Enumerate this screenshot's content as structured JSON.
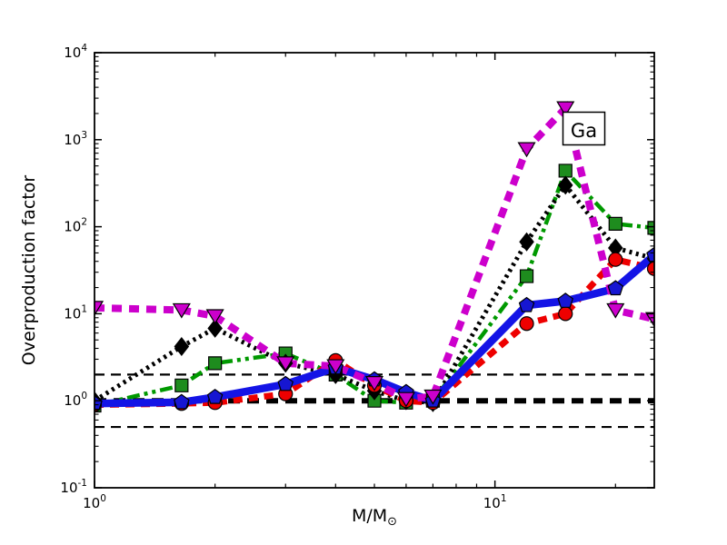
{
  "chart_data": {
    "type": "line",
    "title": "",
    "annotation": {
      "text": "Ga"
    },
    "xlabel_main": "M/M",
    "xlabel_subscript": "⊙",
    "ylabel": "Overproduction factor",
    "x_axis": {
      "scale": "log",
      "min": 1,
      "max": 25,
      "tick_base": "10",
      "tick_exponents": [
        0,
        1
      ]
    },
    "y_axis": {
      "scale": "log",
      "min": 0.1,
      "max": 10000,
      "tick_base": "10",
      "tick_exponents": [
        4,
        3,
        2,
        1,
        0,
        -1
      ]
    },
    "x": [
      1.0,
      1.65,
      2.0,
      3.0,
      4.0,
      5.0,
      6.0,
      7.0,
      12.0,
      15.0,
      20.0,
      25.0
    ],
    "series": [
      {
        "name": "green-dashdotdot-squares",
        "color": "#009900",
        "marker_color": "#1e8c1e",
        "line_style": "dash-dot-dot",
        "line_width": 4.5,
        "marker": "square",
        "values": [
          0.88,
          1.5,
          2.7,
          3.5,
          2.0,
          1.0,
          0.95,
          1.0,
          27,
          440,
          108,
          97
        ]
      },
      {
        "name": "black-dotted-diamonds",
        "color": "#000000",
        "marker_color": "#000000",
        "line_style": "dotted",
        "line_width": 5,
        "marker": "diamond",
        "values": [
          1.0,
          4.2,
          6.8,
          2.7,
          2.0,
          1.3,
          1.0,
          0.95,
          67,
          300,
          57,
          43
        ]
      },
      {
        "name": "red-dashed-circles",
        "color": "#ee0000",
        "marker_color": "#ee0000",
        "line_style": "dashed",
        "line_width": 7,
        "marker": "circle",
        "values": [
          0.9,
          0.93,
          0.95,
          1.2,
          2.9,
          1.5,
          1.0,
          0.95,
          7.7,
          10,
          42,
          33
        ]
      },
      {
        "name": "blue-solid-pentagons",
        "color": "#1414e6",
        "marker_color": "#1616d2",
        "line_style": "solid",
        "line_width": 8.5,
        "marker": "pentagon",
        "values": [
          0.93,
          0.96,
          1.1,
          1.55,
          2.4,
          1.75,
          1.25,
          1.0,
          12.5,
          14,
          19.5,
          47
        ]
      },
      {
        "name": "magenta-dashed-triangles",
        "color": "#cc00cc",
        "marker_color": "#cc00cc",
        "line_style": "dashed-heavy",
        "line_width": 8,
        "marker": "triangle-down",
        "values": [
          11.7,
          11,
          9.4,
          2.7,
          2.5,
          1.6,
          1.05,
          1.12,
          780,
          2300,
          11,
          8.7
        ]
      }
    ],
    "reference_lines": [
      {
        "y": 2,
        "style": "thin-dashed",
        "color": "#000000"
      },
      {
        "y": 1,
        "style": "thick-dashed",
        "color": "#000000"
      },
      {
        "y": 0.5,
        "style": "thin-dashed",
        "color": "#000000"
      }
    ],
    "legend": {
      "visible": false
    }
  }
}
